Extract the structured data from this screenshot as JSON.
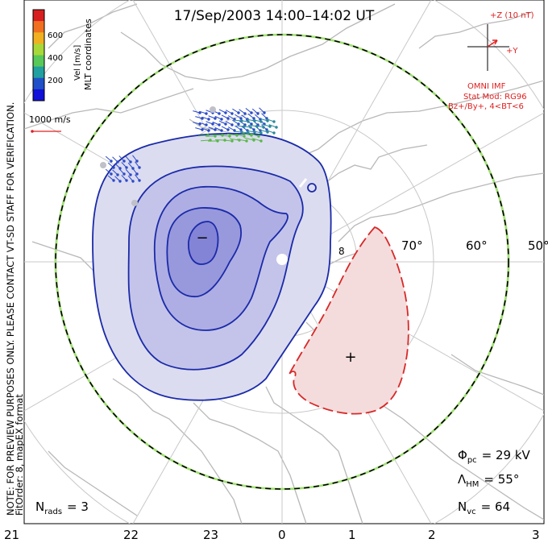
{
  "title": "17/Sep/2003 14:00–14:02 UT",
  "side_note_line1": "NOTE: FOR PREVIEW PURPOSES ONLY. PLEASE CONTACT VT-SD STAFF FOR VERIFICATION.",
  "side_note_line2": "FitOrder: 8, mapEX format",
  "coord_label": "MLT coordinates",
  "colorbar": {
    "title": "Vel [m/s]",
    "ticks": [
      "600",
      "400",
      "200"
    ],
    "colors": [
      "#d81e1e",
      "#f07020",
      "#f0b020",
      "#a8d838",
      "#58c858",
      "#20a0a0",
      "#2050c8",
      "#1010d8"
    ]
  },
  "velocity_scale_label": "1000 m/s",
  "imf": {
    "z_label": "+Z (10 nT)",
    "y_label": "+Y",
    "source": "OMNI IMF"
  },
  "stat_model": {
    "line1": "Stat Mod: RG96",
    "line2": "Bz+/By+, 4<BT<6"
  },
  "lat_labels": [
    "70°",
    "60°",
    "50°"
  ],
  "mlt_labels": [
    "21",
    "22",
    "23",
    "0",
    "1",
    "2",
    "3"
  ],
  "cell_markers": {
    "negative": "−",
    "positive": "+"
  },
  "stats": {
    "phi_symbol": "Φ",
    "phi_sub": "pc",
    "phi_value": "= 29 kV",
    "lambda_symbol": "Λ",
    "lambda_sub": "HM",
    "lambda_value": "= 55°",
    "nvc_symbol": "N",
    "nvc_sub": "vc",
    "nvc_value": "= 64",
    "nrads_symbol": "N",
    "nrads_sub": "rads",
    "nrads_value": "= 3"
  }
}
